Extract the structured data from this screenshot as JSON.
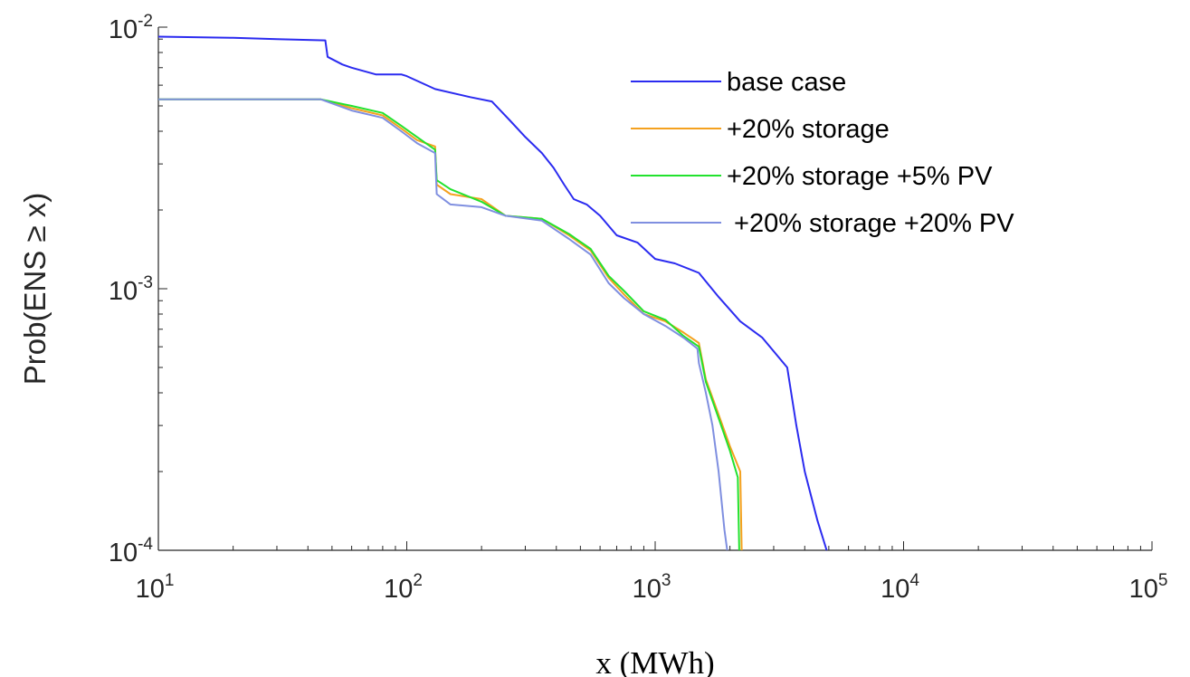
{
  "chart_data": {
    "type": "line",
    "xlabel": "x (MWh)",
    "ylabel": "Prob(ENS ≥ x)",
    "x_scale": "log",
    "y_scale": "log",
    "xlim": [
      10,
      100000
    ],
    "ylim": [
      0.0001,
      0.01
    ],
    "grid": false,
    "legend_position": "top-right",
    "x_ticks": [
      {
        "base": "10",
        "exp": "1"
      },
      {
        "base": "10",
        "exp": "2"
      },
      {
        "base": "10",
        "exp": "3"
      },
      {
        "base": "10",
        "exp": "4"
      },
      {
        "base": "10",
        "exp": "5"
      }
    ],
    "y_ticks": [
      {
        "base": "10",
        "exp": "-4"
      },
      {
        "base": "10",
        "exp": "-3"
      },
      {
        "base": "10",
        "exp": "-2"
      }
    ],
    "series": [
      {
        "name": "base case",
        "color": "#2b2bf0",
        "points": [
          [
            10,
            0.0092
          ],
          [
            20,
            0.0091
          ],
          [
            30,
            0.009
          ],
          [
            47,
            0.0089
          ],
          [
            48,
            0.0077
          ],
          [
            55,
            0.0072
          ],
          [
            60,
            0.007
          ],
          [
            75,
            0.0066
          ],
          [
            95,
            0.0066
          ],
          [
            100,
            0.0065
          ],
          [
            130,
            0.0058
          ],
          [
            180,
            0.0054
          ],
          [
            220,
            0.0052
          ],
          [
            260,
            0.0044
          ],
          [
            300,
            0.0038
          ],
          [
            350,
            0.0033
          ],
          [
            390,
            0.0029
          ],
          [
            430,
            0.0025
          ],
          [
            470,
            0.0022
          ],
          [
            530,
            0.0021
          ],
          [
            600,
            0.0019
          ],
          [
            700,
            0.0016
          ],
          [
            850,
            0.0015
          ],
          [
            1000,
            0.0013
          ],
          [
            1200,
            0.00125
          ],
          [
            1500,
            0.00115
          ],
          [
            1800,
            0.00093
          ],
          [
            2200,
            0.00075
          ],
          [
            2700,
            0.00065
          ],
          [
            3400,
            0.0005
          ],
          [
            3700,
            0.0003
          ],
          [
            4000,
            0.0002
          ],
          [
            4500,
            0.00013
          ],
          [
            4900,
            0.0001
          ]
        ]
      },
      {
        "name": "+20% storage",
        "color": "#f4a11f",
        "points": [
          [
            10,
            0.0053
          ],
          [
            40,
            0.0053
          ],
          [
            45,
            0.0053
          ],
          [
            60,
            0.0049
          ],
          [
            80,
            0.0046
          ],
          [
            95,
            0.0041
          ],
          [
            110,
            0.0037
          ],
          [
            130,
            0.0035
          ],
          [
            132,
            0.0025
          ],
          [
            150,
            0.0023
          ],
          [
            200,
            0.0022
          ],
          [
            250,
            0.0019
          ],
          [
            350,
            0.00185
          ],
          [
            450,
            0.0016
          ],
          [
            550,
            0.0014
          ],
          [
            650,
            0.0011
          ],
          [
            750,
            0.00095
          ],
          [
            900,
            0.0008
          ],
          [
            1100,
            0.00075
          ],
          [
            1300,
            0.00068
          ],
          [
            1500,
            0.00062
          ],
          [
            1600,
            0.00045
          ],
          [
            1800,
            0.00033
          ],
          [
            2000,
            0.00025
          ],
          [
            2200,
            0.0002
          ],
          [
            2230,
            0.0001
          ]
        ]
      },
      {
        "name": "+20% storage +5% PV",
        "color": "#22e22e",
        "points": [
          [
            10,
            0.0053
          ],
          [
            40,
            0.0053
          ],
          [
            45,
            0.0053
          ],
          [
            60,
            0.005
          ],
          [
            80,
            0.0047
          ],
          [
            95,
            0.0042
          ],
          [
            110,
            0.0038
          ],
          [
            130,
            0.0034
          ],
          [
            132,
            0.0026
          ],
          [
            150,
            0.0024
          ],
          [
            200,
            0.00215
          ],
          [
            250,
            0.0019
          ],
          [
            350,
            0.00185
          ],
          [
            450,
            0.00162
          ],
          [
            550,
            0.00142
          ],
          [
            650,
            0.00112
          ],
          [
            750,
            0.00098
          ],
          [
            900,
            0.00082
          ],
          [
            1100,
            0.00076
          ],
          [
            1300,
            0.00066
          ],
          [
            1500,
            0.0006
          ],
          [
            1600,
            0.00044
          ],
          [
            1800,
            0.00032
          ],
          [
            2000,
            0.00024
          ],
          [
            2150,
            0.00019
          ],
          [
            2180,
            0.0001
          ]
        ]
      },
      {
        "name": " +20% storage +20% PV",
        "color": "#7f8fe0",
        "points": [
          [
            10,
            0.0053
          ],
          [
            40,
            0.0053
          ],
          [
            45,
            0.0053
          ],
          [
            60,
            0.0048
          ],
          [
            80,
            0.0045
          ],
          [
            95,
            0.004
          ],
          [
            110,
            0.0036
          ],
          [
            130,
            0.0033
          ],
          [
            132,
            0.0023
          ],
          [
            150,
            0.0021
          ],
          [
            200,
            0.00205
          ],
          [
            250,
            0.0019
          ],
          [
            350,
            0.00182
          ],
          [
            450,
            0.00155
          ],
          [
            550,
            0.00135
          ],
          [
            650,
            0.00105
          ],
          [
            750,
            0.00092
          ],
          [
            900,
            0.0008
          ],
          [
            1100,
            0.00072
          ],
          [
            1300,
            0.00065
          ],
          [
            1480,
            0.00059
          ],
          [
            1500,
            0.00052
          ],
          [
            1600,
            0.0004
          ],
          [
            1700,
            0.0003
          ],
          [
            1800,
            0.0002
          ],
          [
            1900,
            0.00012
          ],
          [
            1950,
            0.0001
          ]
        ]
      }
    ]
  }
}
